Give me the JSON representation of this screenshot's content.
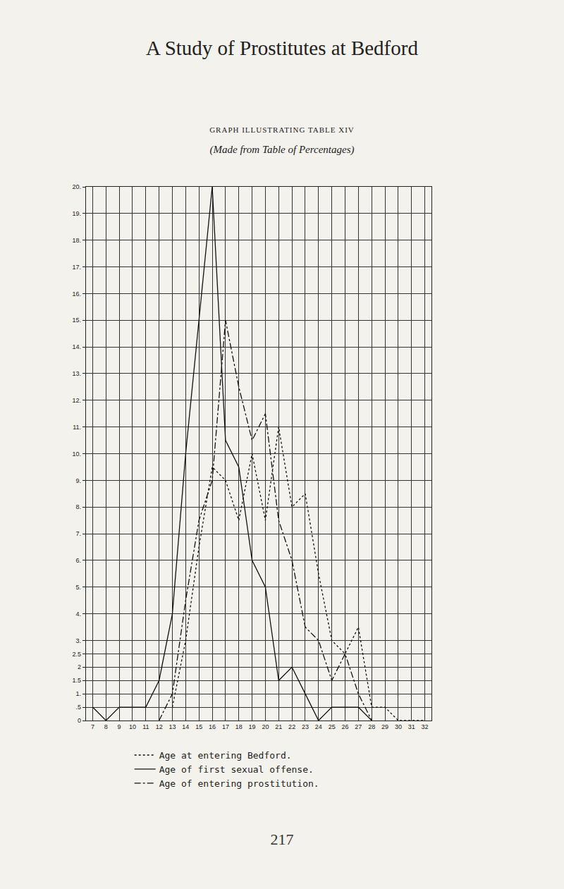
{
  "running_head": "A Study of Prostitutes at Bedford",
  "page_number": "217",
  "chart_data": {
    "type": "line",
    "title": "GRAPH ILLUSTRATING TABLE XIV",
    "subtitle": "(Made from Table of Percentages)",
    "x": [
      7,
      8,
      9,
      10,
      11,
      12,
      13,
      14,
      15,
      16,
      17,
      18,
      19,
      20,
      21,
      22,
      23,
      24,
      25,
      26,
      27,
      28,
      29,
      30,
      31,
      32
    ],
    "series": [
      {
        "name": "Age at entering Bedford.",
        "color": "#111111",
        "line_style": "dot",
        "values": [
          null,
          null,
          null,
          null,
          null,
          null,
          0.5,
          3,
          6.5,
          9.5,
          9,
          7.5,
          10,
          7.5,
          11,
          8,
          8.5,
          5.5,
          3,
          2.5,
          3.5,
          0.5,
          0.5,
          0,
          0,
          0
        ]
      },
      {
        "name": "Age of first sexual offense.",
        "color": "#111111",
        "line_style": "solid",
        "values": [
          0.5,
          0,
          0.5,
          0.5,
          0.5,
          1.5,
          4,
          10,
          15,
          20,
          10.5,
          9.5,
          6,
          5,
          1.5,
          2,
          1,
          0,
          0.5,
          0.5,
          0.5,
          0,
          null,
          null,
          null,
          null
        ]
      },
      {
        "name": "Age of entering prostitution.",
        "color": "#111111",
        "line_style": "dashdot",
        "values": [
          null,
          null,
          null,
          null,
          null,
          0,
          1,
          4.5,
          7.5,
          9,
          15,
          12.5,
          10.5,
          11.5,
          7.5,
          6,
          3.5,
          3,
          1.5,
          2.5,
          1,
          0,
          null,
          null,
          null,
          null
        ]
      }
    ],
    "xlim": [
      6.5,
      32.5
    ],
    "xticks": [
      7,
      8,
      9,
      10,
      11,
      12,
      13,
      14,
      15,
      16,
      17,
      18,
      19,
      20,
      21,
      22,
      23,
      24,
      25,
      26,
      27,
      28,
      29,
      30,
      31,
      32
    ],
    "ylim": [
      0,
      20
    ],
    "yticks": [
      0,
      {
        "value": 0.5,
        "label": ".5"
      },
      {
        "value": 1,
        "label": "1."
      },
      1.5,
      2,
      2.5,
      {
        "value": 3,
        "label": "3."
      },
      {
        "value": 4,
        "label": "4."
      },
      {
        "value": 5,
        "label": "5."
      },
      {
        "value": 6,
        "label": "6."
      },
      {
        "value": 7,
        "label": "7."
      },
      {
        "value": 8,
        "label": "8."
      },
      {
        "value": 9,
        "label": "9."
      },
      {
        "value": 10,
        "label": "10."
      },
      {
        "value": 11,
        "label": "11."
      },
      {
        "value": 12,
        "label": "12."
      },
      {
        "value": 13,
        "label": "13."
      },
      {
        "value": 14,
        "label": "14."
      },
      {
        "value": 15,
        "label": "15."
      },
      {
        "value": 16,
        "label": "16."
      },
      {
        "value": 17,
        "label": "17."
      },
      {
        "value": 18,
        "label": "18."
      },
      {
        "value": 19,
        "label": "19."
      },
      {
        "value": 20,
        "label": "20."
      }
    ],
    "grid": true,
    "legend": "bottom"
  }
}
